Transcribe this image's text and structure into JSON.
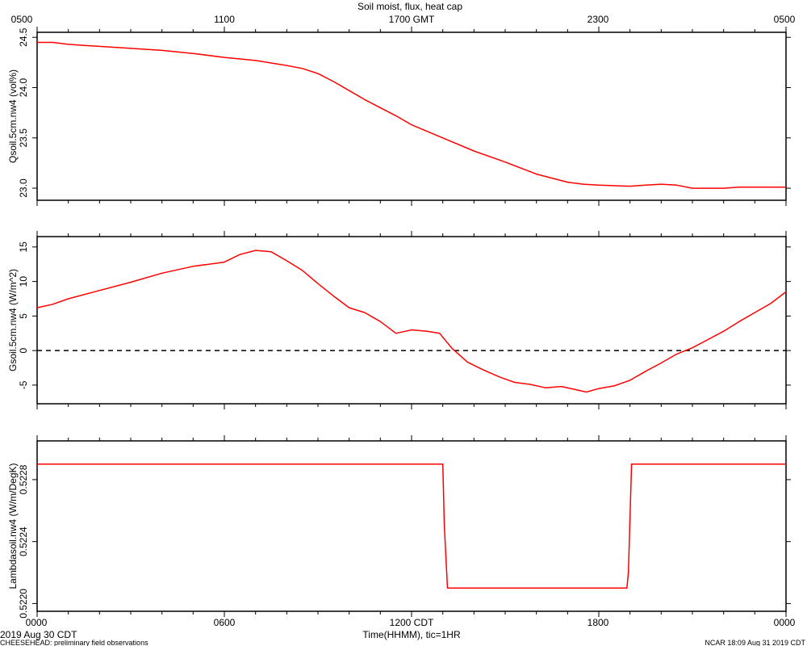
{
  "figure": {
    "title": "Soil moist, flux, heat cap",
    "top_axis_ticks": [
      "0500",
      "1100",
      "1700 GMT",
      "2300",
      "0500"
    ],
    "bottom_axis_ticks": [
      "0000",
      "0600",
      "1200 CDT",
      "1800",
      "0000"
    ],
    "xlabel": "Time(HHMM), tic=1HR",
    "date_label": "2019 Aug 30 CDT",
    "footer_left": "CHEESEHEAD: preliminary field observations",
    "footer_right": "NCAR 18:09 Aug 31 2019 CDT"
  },
  "colors": {
    "series": "#ff0000",
    "axes": "#000000",
    "zero_line": "#000000"
  },
  "chart_data": [
    {
      "type": "line",
      "ylabel": "Qsoil.5cm.nw4 (vol%)",
      "x_range": [
        0,
        24
      ],
      "ylim": [
        22.88,
        24.55
      ],
      "y_ticks": [
        23.0,
        23.5,
        24.0,
        24.5
      ],
      "y_tick_labels": [
        "23.0",
        "23.5",
        "24.0",
        "24.5"
      ],
      "series": [
        {
          "color": "#ff0000",
          "x": [
            0,
            0.5,
            1,
            1.5,
            2,
            3,
            4,
            5,
            6,
            7,
            8,
            8.5,
            9,
            9.5,
            10,
            10.5,
            11,
            11.5,
            12,
            13,
            14,
            15,
            16,
            16.5,
            17,
            17.5,
            18,
            19,
            19.5,
            20,
            20.5,
            21,
            21.5,
            22,
            22.5,
            23,
            24
          ],
          "y": [
            24.45,
            24.45,
            24.43,
            24.42,
            24.41,
            24.39,
            24.37,
            24.34,
            24.3,
            24.27,
            24.22,
            24.19,
            24.14,
            24.06,
            23.97,
            23.88,
            23.8,
            23.72,
            23.63,
            23.5,
            23.37,
            23.26,
            23.14,
            23.1,
            23.06,
            23.04,
            23.03,
            23.02,
            23.03,
            23.04,
            23.03,
            23.0,
            23.0,
            23.0,
            23.01,
            23.01,
            23.01
          ]
        }
      ]
    },
    {
      "type": "line",
      "ylabel": "Gsoil.5cm.nw4 (W/m^2)",
      "x_range": [
        0,
        24
      ],
      "ylim": [
        -7.7,
        16.5
      ],
      "y_ticks": [
        -5,
        0,
        5,
        10,
        15
      ],
      "y_tick_labels": [
        "-5",
        "0",
        "5",
        "10",
        "15"
      ],
      "zero_line": true,
      "series": [
        {
          "color": "#ff0000",
          "x": [
            0,
            0.5,
            1,
            2,
            3,
            4,
            5,
            6,
            6.5,
            7,
            7.5,
            8,
            8.5,
            9,
            9.5,
            10,
            10.5,
            11,
            11.5,
            12,
            12.5,
            12.9,
            13.3,
            13.8,
            14.3,
            14.8,
            15.3,
            15.8,
            16.3,
            16.8,
            17.2,
            17.6,
            18,
            18.5,
            19,
            19.5,
            20,
            20.5,
            21,
            21.5,
            22,
            22.5,
            23,
            23.5,
            24
          ],
          "y": [
            6.2,
            6.7,
            7.5,
            8.7,
            9.9,
            11.2,
            12.2,
            12.8,
            13.9,
            14.5,
            14.3,
            13.0,
            11.6,
            9.7,
            7.9,
            6.2,
            5.5,
            4.2,
            2.5,
            3.0,
            2.8,
            2.5,
            0.3,
            -1.7,
            -2.8,
            -3.8,
            -4.6,
            -4.9,
            -5.4,
            -5.2,
            -5.6,
            -6.0,
            -5.5,
            -5.1,
            -4.3,
            -3.0,
            -1.8,
            -0.5,
            0.4,
            1.6,
            2.8,
            4.2,
            5.5,
            6.8,
            8.5
          ]
        }
      ]
    },
    {
      "type": "line",
      "ylabel": "Lambdasoil.nw4 (W/m/DegK)",
      "x_range": [
        0,
        24
      ],
      "ylim": [
        0.52195,
        0.52305
      ],
      "y_ticks": [
        0.522,
        0.5224,
        0.5228
      ],
      "y_tick_labels": [
        "0.5220",
        "0.5224",
        "0.5228"
      ],
      "series": [
        {
          "color": "#ff0000",
          "x": [
            0,
            13.0,
            13.05,
            13.15,
            18.9,
            18.95,
            19.05,
            24
          ],
          "y": [
            0.5229,
            0.5229,
            0.5225,
            0.5221,
            0.5221,
            0.5222,
            0.5229,
            0.5229
          ]
        }
      ]
    }
  ]
}
